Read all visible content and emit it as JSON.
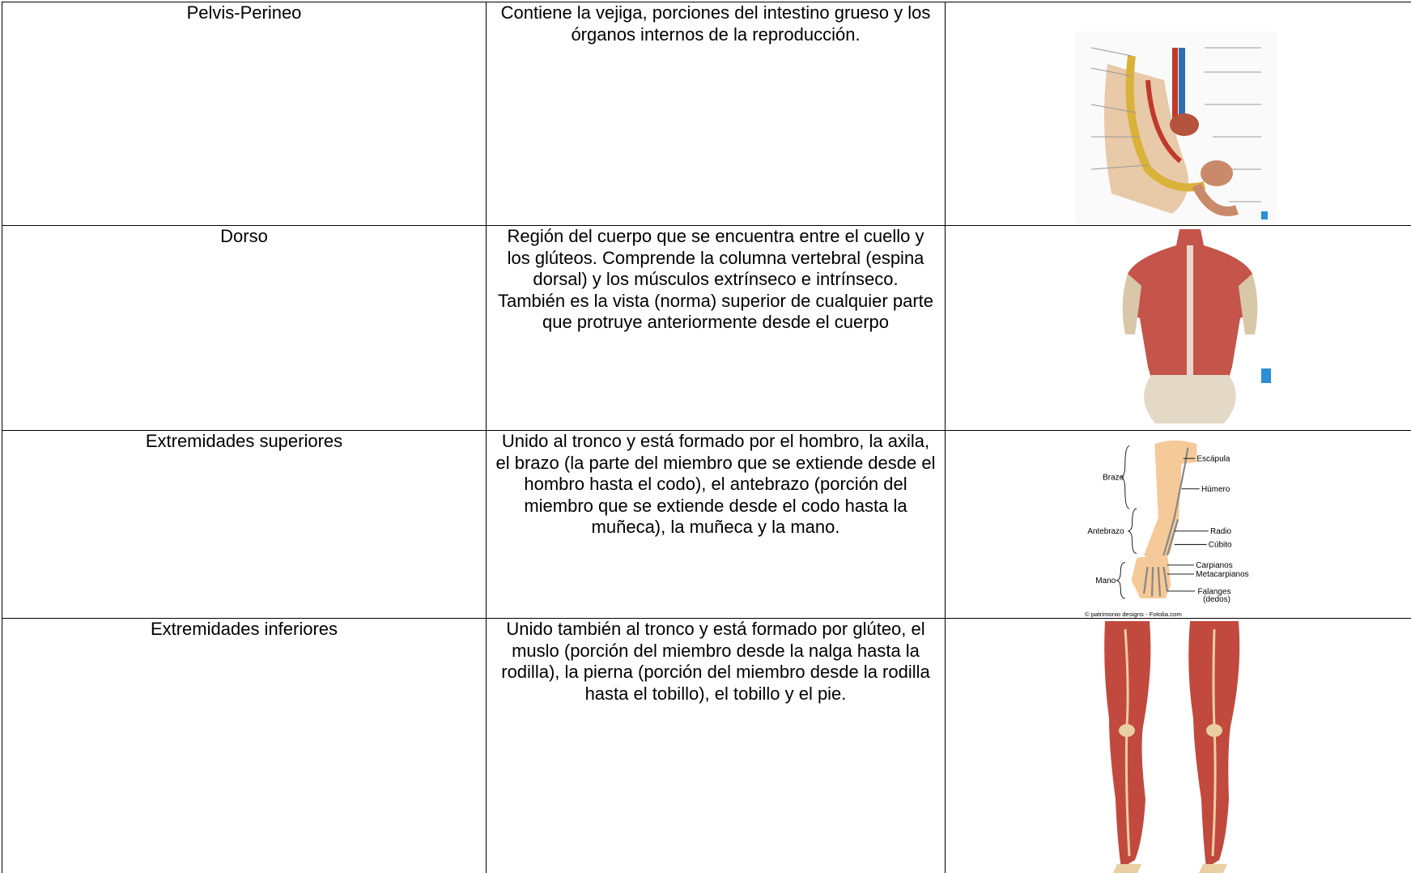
{
  "table": {
    "rows": [
      {
        "region": "Pelvis-Perineo",
        "description": [
          "Contiene la vejiga, porciones del intestino grueso y los órganos internos de la reproducción."
        ]
      },
      {
        "region": "Dorso",
        "description": [
          "Región del cuerpo que se encuentra entre el cuello y los glúteos. Comprende la columna vertebral (espina dorsal) y los músculos extrínseco e intrínseco.",
          "También es la vista (norma) superior de cualquier parte que protruye anteriormente desde el cuerpo"
        ]
      },
      {
        "region": "Extremidades superiores",
        "description": [
          "Unido al tronco y está formado por el hombro, la axila, el brazo (la parte del miembro que se extiende desde el hombro hasta el codo), el antebrazo (porción del miembro que se extiende desde el codo hasta la muñeca), la muñeca y la mano."
        ]
      },
      {
        "region": "Extremidades inferiores",
        "description": [
          "Unido también al tronco y está formado por glúteo, el muslo (porción del miembro desde la nalga hasta la rodilla), la pierna (porción del miembro desde la rodilla hasta el tobillo), el tobillo y el pie."
        ]
      }
    ]
  },
  "upper_limb_figure": {
    "labels": [
      "Escápula",
      "Brazo",
      "Húmero",
      "Antebrazo",
      "Radio",
      "Cúbito",
      "Carpianos",
      "Metacarpianos",
      "Mano",
      "Falanges",
      "(dedos)"
    ],
    "credit": "© patrimonio designs - Fotolia.com"
  }
}
